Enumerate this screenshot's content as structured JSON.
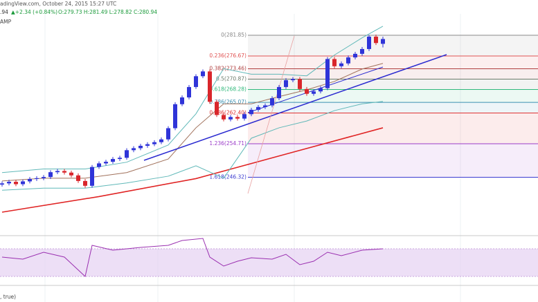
{
  "header": {
    "source": "adingView.com, October 24, 2015 15:27 UTC",
    "last": ".94",
    "change": "▲+2.34 (+0.84%)",
    "ohlc": "O:279.73 H:281.49 L:278.82 C:280.94",
    "indicator": "AMP",
    "bottom_indicator": ", true)"
  },
  "chart_data": {
    "type": "candlestick",
    "ylim": [
      231.9,
      290.66
    ],
    "up_color": "#2f34d8",
    "down_color": "#d9262b",
    "candles": {
      "open": [
        244.5,
        244.8,
        245.2,
        244.6,
        245.3,
        245.9,
        246.1,
        246.4,
        247.6,
        247.9,
        247.5,
        246.8,
        245.4,
        244.2,
        248.9,
        249.8,
        250.2,
        250.9,
        251.2,
        253.1,
        253.6,
        254.2,
        254.6,
        255.1,
        255.8,
        258.6,
        264.6,
        266.3,
        268.9,
        271.6,
        272.8,
        265.2,
        261.9,
        260.8,
        261.4,
        261.0,
        262.1,
        263.2,
        263.9,
        264.3,
        266.1,
        268.9,
        270.6,
        270.9,
        268.4,
        267.2,
        267.8,
        268.6,
        275.9,
        274.1,
        274.8,
        276.3,
        277.2,
        278.4,
        281.5,
        279.7
      ],
      "high": [
        245.3,
        245.7,
        245.7,
        245.8,
        246.4,
        246.6,
        246.9,
        248.1,
        248.4,
        248.4,
        248.0,
        247.3,
        245.9,
        249.4,
        250.3,
        250.7,
        251.4,
        251.7,
        253.6,
        254.1,
        254.7,
        255.1,
        255.6,
        256.3,
        259.1,
        265.1,
        266.8,
        269.4,
        272.1,
        273.3,
        273.3,
        265.7,
        262.4,
        261.9,
        261.9,
        262.6,
        263.7,
        264.4,
        264.8,
        266.6,
        269.4,
        271.1,
        271.4,
        271.4,
        268.9,
        268.3,
        269.1,
        276.4,
        276.4,
        275.3,
        276.8,
        277.7,
        278.9,
        281.9,
        282.0,
        281.5
      ],
      "low": [
        244.0,
        244.3,
        244.1,
        244.1,
        244.8,
        245.4,
        245.6,
        245.9,
        247.1,
        247.0,
        246.3,
        244.9,
        243.7,
        243.7,
        248.4,
        249.3,
        249.7,
        250.4,
        250.7,
        252.6,
        253.1,
        253.7,
        254.1,
        254.6,
        255.3,
        258.1,
        264.1,
        265.8,
        268.4,
        271.1,
        264.7,
        261.4,
        260.3,
        260.3,
        260.5,
        260.5,
        261.6,
        262.7,
        263.4,
        263.8,
        265.6,
        268.4,
        270.1,
        267.9,
        266.7,
        266.7,
        267.3,
        268.1,
        273.6,
        273.6,
        274.3,
        275.8,
        276.7,
        277.9,
        279.4,
        278.8
      ],
      "close": [
        244.8,
        245.2,
        244.6,
        245.3,
        245.9,
        246.1,
        246.4,
        247.6,
        247.9,
        247.5,
        246.8,
        245.4,
        244.2,
        248.9,
        249.8,
        250.2,
        250.9,
        251.2,
        253.1,
        253.6,
        254.2,
        254.6,
        255.1,
        255.8,
        258.6,
        264.6,
        266.3,
        268.9,
        271.6,
        272.8,
        265.2,
        261.9,
        260.8,
        261.4,
        261.0,
        262.1,
        263.2,
        263.9,
        264.3,
        266.1,
        268.9,
        270.6,
        270.9,
        268.4,
        267.2,
        267.8,
        268.6,
        275.9,
        274.1,
        274.8,
        276.3,
        277.2,
        278.4,
        281.5,
        279.9,
        280.9
      ]
    },
    "overlays": [
      {
        "color": "#e02424",
        "x": [
          0,
          14,
          28,
          42,
          55
        ],
        "values": [
          237.6,
          241.5,
          246.0,
          252.6,
          258.7
        ]
      },
      {
        "color": "#5fb8b8",
        "x": [
          0,
          6,
          12,
          18,
          24,
          28,
          32,
          36,
          40,
          44,
          48,
          52,
          55
        ],
        "values": [
          247.5,
          248.4,
          248.4,
          250.1,
          254.4,
          262.2,
          273.5,
          272.1,
          272.1,
          271.7,
          276.9,
          281.2,
          284.1
        ]
      },
      {
        "color": "#a0705a",
        "x": [
          0,
          6,
          12,
          18,
          24,
          28,
          32,
          36,
          40,
          44,
          48,
          52,
          55
        ],
        "values": [
          245.4,
          246.1,
          246.1,
          247.5,
          250.9,
          258.7,
          264.7,
          264.7,
          266.5,
          268.2,
          270.3,
          273.4,
          274.8
        ]
      },
      {
        "color": "#5fb8b8",
        "x": [
          0,
          6,
          12,
          18,
          24,
          28,
          32,
          36,
          40,
          44,
          48,
          52,
          55
        ],
        "values": [
          243.1,
          243.6,
          243.6,
          244.9,
          246.6,
          249.2,
          246.1,
          256.1,
          258.7,
          260.4,
          263.0,
          264.7,
          265.3
        ]
      }
    ],
    "fib_levels": [
      {
        "value": 281.85,
        "label": "0(281.85)",
        "color": "#888888"
      },
      {
        "value": 276.67,
        "label": "0.236(276.67)",
        "color": "#e05050"
      },
      {
        "value": 273.46,
        "label": "0.382(273.46)",
        "color": "#b04040"
      },
      {
        "value": 270.87,
        "label": "0.5(270.87)",
        "color": "#6a7a6a"
      },
      {
        "value": 268.28,
        "label": "0.618(268.28)",
        "color": "#2fb87a"
      },
      {
        "value": 265.07,
        "label": "0.786(265.07)",
        "color": "#3a8fb0"
      },
      {
        "value": 262.4,
        "label": "0.886(262.40)",
        "color": "#e03030"
      },
      {
        "value": 254.71,
        "label": "1.236(254.71)",
        "color": "#9a3ac8"
      },
      {
        "value": 246.32,
        "label": "1.618(246.32)",
        "color": "#3a3ad0"
      }
    ],
    "rsi": {
      "color": "#9a2fb0",
      "ylim": [
        20,
        87
      ],
      "band": [
        30,
        70
      ],
      "x": [
        0,
        3,
        6,
        9,
        12,
        13,
        16,
        20,
        24,
        26,
        29,
        30,
        32,
        34,
        36,
        39,
        41,
        43,
        45,
        47,
        49,
        52,
        55
      ],
      "values": [
        58,
        55,
        65,
        58,
        30,
        75,
        68,
        72,
        75,
        82,
        85,
        58,
        45,
        52,
        57,
        55,
        62,
        47,
        52,
        65,
        60,
        68,
        70
      ]
    }
  }
}
